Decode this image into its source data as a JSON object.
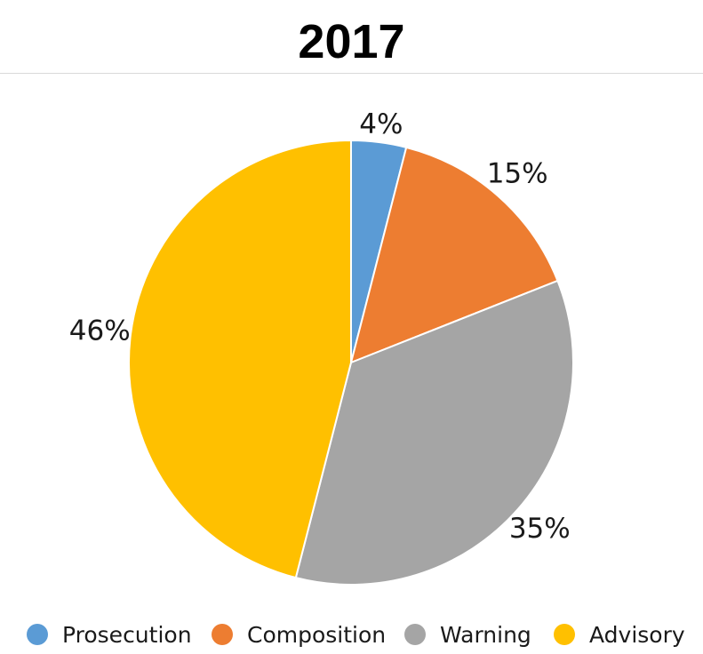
{
  "chart_data": {
    "type": "pie",
    "title": "2017",
    "categories": [
      "Prosecution",
      "Composition",
      "Warning",
      "Advisory"
    ],
    "values": [
      4,
      15,
      35,
      46
    ],
    "data_labels": [
      "4%",
      "15%",
      "35%",
      "46%"
    ],
    "colors": [
      "#5b9bd5",
      "#ed7d31",
      "#a5a5a5",
      "#ffc000"
    ],
    "start_angle": "12 o'clock",
    "direction": "clockwise",
    "legend": "bottom"
  }
}
